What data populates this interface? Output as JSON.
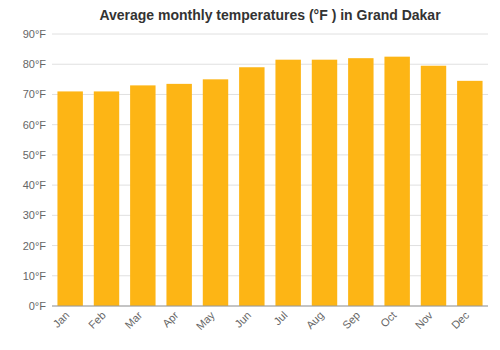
{
  "chart_data": {
    "type": "bar",
    "title": "Average monthly temperatures (°F ) in Grand Dakar",
    "categories": [
      "Jan",
      "Feb",
      "Mar",
      "Apr",
      "May",
      "Jun",
      "Jul",
      "Aug",
      "Sep",
      "Oct",
      "Nov",
      "Dec"
    ],
    "values": [
      71,
      71,
      73,
      73.5,
      75,
      79,
      81.5,
      81.5,
      82,
      82.5,
      79.5,
      74.5
    ],
    "color": "#FDB515",
    "ylim": [
      0,
      90
    ],
    "yticks": [
      {
        "value": 0,
        "label": "0°F"
      },
      {
        "value": 10,
        "label": "10°F"
      },
      {
        "value": 20,
        "label": "20°F"
      },
      {
        "value": 30,
        "label": "30°F"
      },
      {
        "value": 40,
        "label": "40°F"
      },
      {
        "value": 50,
        "label": "50°F"
      },
      {
        "value": 60,
        "label": "60°F"
      },
      {
        "value": 70,
        "label": "70°F"
      },
      {
        "value": 80,
        "label": "80°F"
      },
      {
        "value": 90,
        "label": "90°F"
      }
    ],
    "grid": true
  }
}
